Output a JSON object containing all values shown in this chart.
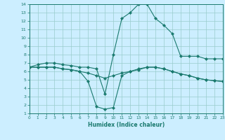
{
  "xlabel": "Humidex (Indice chaleur)",
  "bg_color": "#cceeff",
  "line_color": "#1a7a6e",
  "grid_color": "#99cccc",
  "xmin": 0,
  "xmax": 23,
  "ymin": 1,
  "ymax": 14,
  "series": [
    {
      "x": [
        0,
        1,
        2,
        3,
        4,
        5,
        6,
        7,
        8,
        9,
        10,
        11,
        12,
        13,
        14,
        15,
        16,
        17,
        18,
        19,
        20,
        21,
        22,
        23
      ],
      "y": [
        6.5,
        6.8,
        7.0,
        7.0,
        6.8,
        6.7,
        6.5,
        6.5,
        6.3,
        3.3,
        8.0,
        12.3,
        13.0,
        14.0,
        14.0,
        12.3,
        11.5,
        10.5,
        7.8,
        7.8,
        7.8,
        7.5,
        7.5,
        7.5
      ]
    },
    {
      "x": [
        0,
        1,
        2,
        3,
        4,
        5,
        6,
        7,
        8,
        9,
        10,
        11,
        12,
        13,
        14,
        15,
        16,
        17,
        18,
        19,
        20,
        21,
        22,
        23
      ],
      "y": [
        6.5,
        6.5,
        6.5,
        6.5,
        6.3,
        6.2,
        6.0,
        5.8,
        5.5,
        5.2,
        5.5,
        5.8,
        6.0,
        6.2,
        6.5,
        6.5,
        6.3,
        6.0,
        5.7,
        5.5,
        5.2,
        5.0,
        4.9,
        4.8
      ]
    },
    {
      "x": [
        0,
        1,
        2,
        3,
        4,
        5,
        6,
        7,
        8,
        9,
        10,
        11,
        12,
        13,
        14,
        15,
        16,
        17,
        18,
        19,
        20,
        21,
        22,
        23
      ],
      "y": [
        6.5,
        6.5,
        6.5,
        6.5,
        6.3,
        6.2,
        6.0,
        4.8,
        1.8,
        1.5,
        1.7,
        5.5,
        6.0,
        6.3,
        6.5,
        6.5,
        6.3,
        6.0,
        5.7,
        5.5,
        5.2,
        5.0,
        4.9,
        4.8
      ]
    }
  ]
}
